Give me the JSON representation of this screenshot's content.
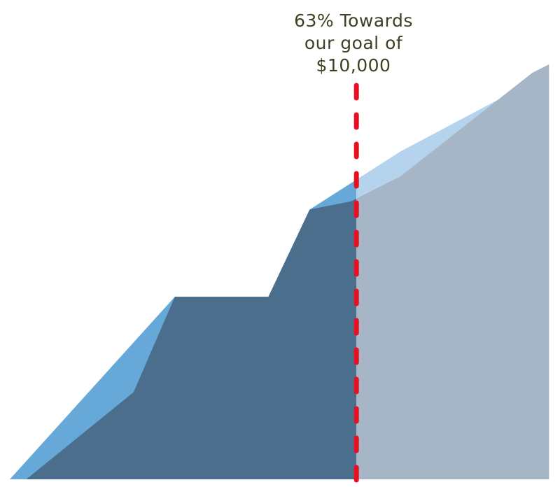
{
  "chart_data": {
    "type": "area",
    "annotation": {
      "lines": [
        "63% Towards",
        "our goal of",
        "$10,000"
      ],
      "marker_progress": 0.63
    },
    "x_range": [
      0,
      1
    ],
    "y_range": [
      0,
      1
    ],
    "grid": false,
    "legend": "none",
    "series": [
      {
        "points": [
          [
            0,
            0
          ],
          [
            0.3,
            0.44
          ],
          [
            0.47,
            0.44
          ],
          [
            0.545,
            0.65
          ],
          [
            0.71,
            0.79
          ],
          [
            0.98,
            0.98
          ]
        ]
      },
      {
        "points": [
          [
            0.03,
            0
          ],
          [
            0.225,
            0.21
          ],
          [
            0.3,
            0.44
          ],
          [
            0.47,
            0.44
          ],
          [
            0.545,
            0.65
          ],
          [
            0.62,
            0.67
          ],
          [
            0.71,
            0.73
          ],
          [
            0.95,
            0.98
          ],
          [
            0.98,
            1.0
          ]
        ]
      }
    ],
    "colors": {
      "back_visible": "#66a9d9",
      "back_remaining": "#b5d3ec",
      "front_visible": "#4a6e8c",
      "front_remaining": "#a6b6c6",
      "goal_line": "#e8101f",
      "label": "#3d4122"
    }
  }
}
